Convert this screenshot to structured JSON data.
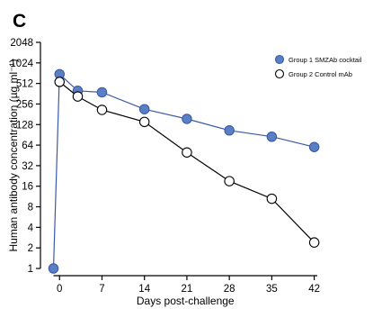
{
  "panel_label": "C",
  "chart_data": {
    "type": "line",
    "xlabel": "Days post-challenge",
    "ylabel": "Human antibody concentration (µg ml⁻¹)",
    "y_scale": "log2",
    "ylim": [
      1,
      2048
    ],
    "xlim": [
      -1,
      42.5
    ],
    "x_ticks": [
      0,
      7,
      14,
      21,
      28,
      35,
      42
    ],
    "x_tick_labels": [
      "0",
      "7",
      "14",
      "21",
      "28",
      "35",
      "42"
    ],
    "y_ticks": [
      1,
      2,
      4,
      8,
      16,
      32,
      64,
      128,
      256,
      512,
      1024,
      2048
    ],
    "y_tick_labels": [
      "1",
      "2",
      "4",
      "8",
      "16",
      "32",
      "64",
      "128",
      "256",
      "512",
      "1024",
      "2048"
    ],
    "legend_position": "top-right",
    "series": [
      {
        "name": "Group 1 SMZAb cocktail",
        "marker": "filled-circle",
        "color": "#5b7fc4",
        "line_color": "#3a5aa6",
        "x": [
          -1,
          0,
          3,
          7,
          14,
          21,
          28,
          35,
          42
        ],
        "y": [
          1,
          700,
          400,
          380,
          215,
          155,
          105,
          85,
          60
        ]
      },
      {
        "name": "Group 2 Control mAb",
        "marker": "open-circle",
        "color": "#000000",
        "line_color": "#000000",
        "x": [
          0,
          3,
          7,
          14,
          21,
          28,
          35,
          42
        ],
        "y": [
          540,
          330,
          210,
          140,
          50,
          19,
          10.5,
          2.4
        ]
      }
    ]
  }
}
